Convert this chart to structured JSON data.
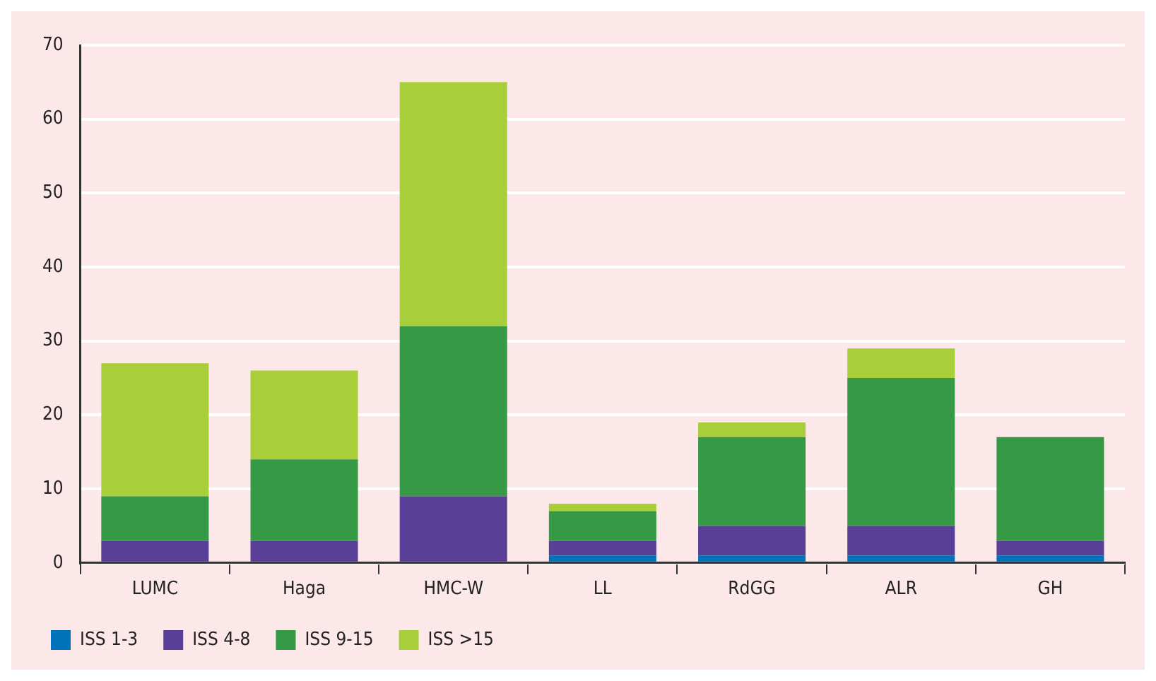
{
  "chart_data": {
    "type": "bar",
    "stacked": true,
    "categories": [
      "LUMC",
      "Haga",
      "HMC-W",
      "LL",
      "RdGG",
      "ALR",
      "GH"
    ],
    "series": [
      {
        "name": "ISS 1-3",
        "color": "#0072b9",
        "values": [
          0,
          0,
          0,
          1,
          1,
          1,
          1
        ]
      },
      {
        "name": "ISS 4-8",
        "color": "#5a3f99",
        "values": [
          3,
          3,
          9,
          2,
          4,
          4,
          2
        ]
      },
      {
        "name": "ISS 9-15",
        "color": "#359946",
        "values": [
          6,
          11,
          23,
          4,
          12,
          20,
          14
        ]
      },
      {
        "name": "ISS >15",
        "color": "#a8cf3a",
        "values": [
          18,
          12,
          33,
          1,
          2,
          4,
          0
        ]
      }
    ],
    "ylim": [
      0,
      70
    ],
    "yticks": [
      0,
      10,
      20,
      30,
      40,
      50,
      60,
      70
    ],
    "grid": "y",
    "legend": "bottom left"
  }
}
